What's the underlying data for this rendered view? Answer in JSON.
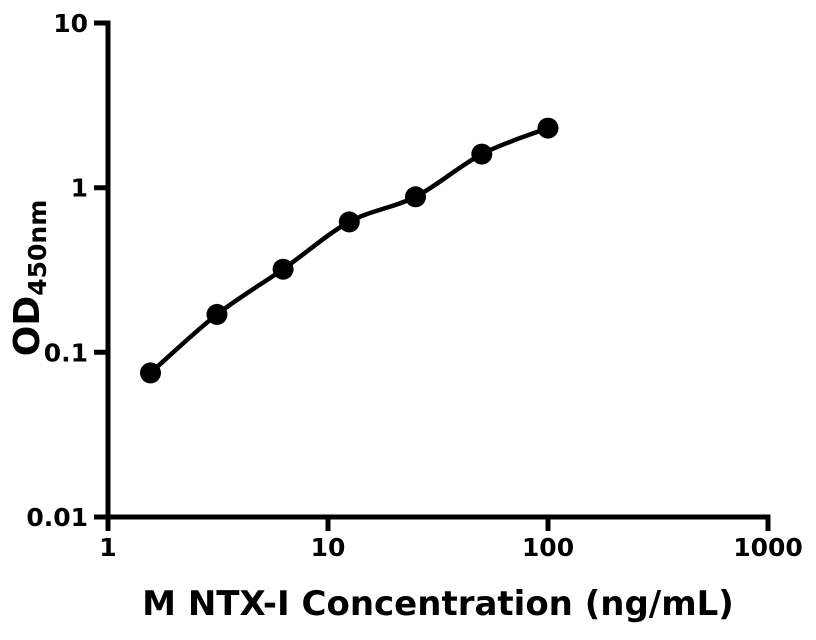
{
  "figure": {
    "background": "#ffffff",
    "ink_color": "#000000"
  },
  "chart_data": {
    "type": "scatter",
    "title": "",
    "xlabel": "M NTX-I Concentration (ng/mL)",
    "ylabel_main": "OD",
    "ylabel_sub": "450nm",
    "x_scale": "log",
    "y_scale": "log",
    "xlim": [
      1,
      1000
    ],
    "ylim": [
      0.01,
      10
    ],
    "x_ticks": [
      1,
      10,
      100,
      1000
    ],
    "x_tick_labels": [
      "1",
      "10",
      "100",
      "1000"
    ],
    "y_ticks": [
      0.01,
      0.1,
      1,
      10
    ],
    "y_tick_labels": [
      "0.01",
      "0.1",
      "1",
      "10"
    ],
    "grid": false,
    "legend": null,
    "series": [
      {
        "marker": "circle",
        "color": "#000000",
        "line": "smooth",
        "x": [
          1.56,
          3.13,
          6.25,
          12.5,
          25,
          50,
          100
        ],
        "y": [
          0.075,
          0.17,
          0.32,
          0.62,
          0.88,
          1.6,
          2.3
        ]
      }
    ]
  }
}
